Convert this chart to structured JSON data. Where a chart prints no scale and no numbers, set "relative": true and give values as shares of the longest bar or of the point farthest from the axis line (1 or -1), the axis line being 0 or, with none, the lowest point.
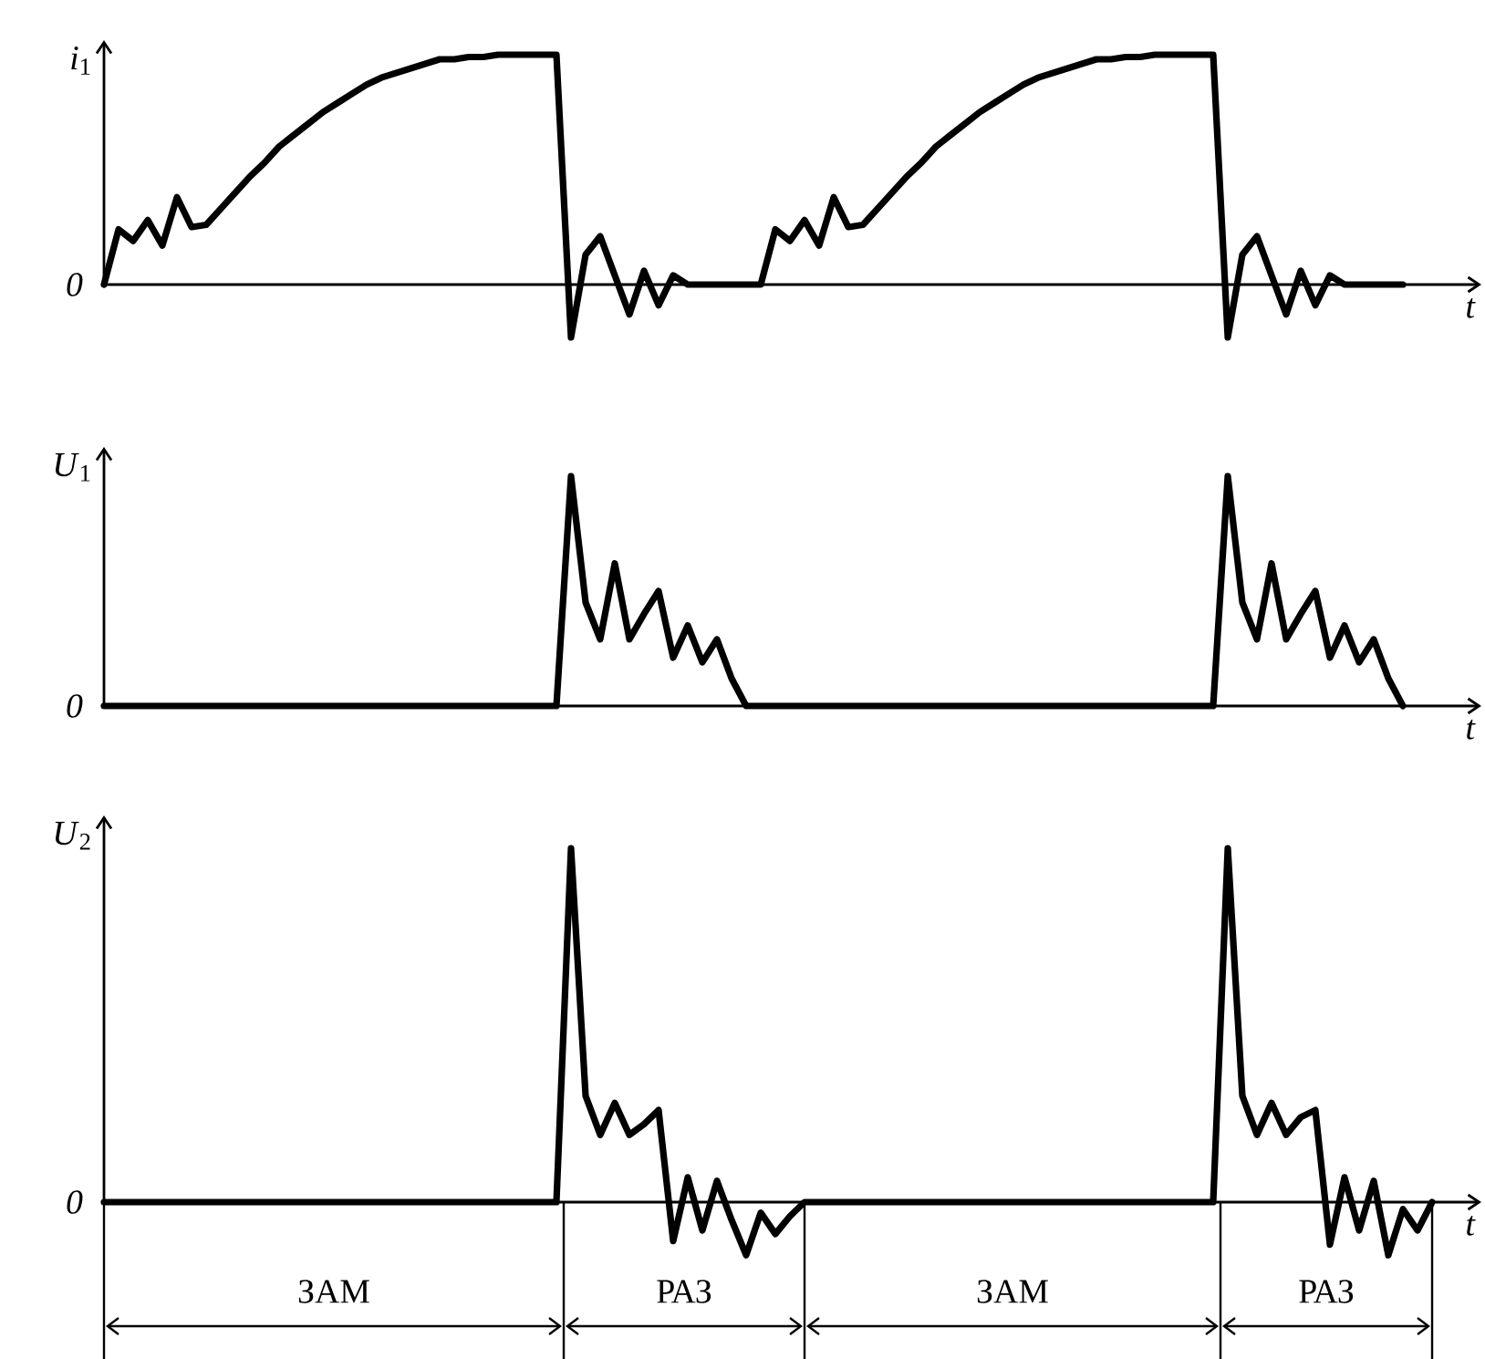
{
  "chart_data": [
    {
      "type": "line",
      "relative": true,
      "xlabel": "t",
      "ylabel": "*i*$_{1}$",
      "annotations": [
        "0"
      ],
      "categories": [
        null,
        null,
        null,
        null,
        null,
        null,
        null,
        null,
        null,
        null,
        null,
        null,
        null,
        null,
        null,
        null,
        null,
        null,
        null,
        null,
        null,
        null,
        null,
        null,
        null,
        null,
        null,
        null,
        null,
        null,
        null,
        null,
        null,
        null,
        null,
        null,
        null,
        null,
        null,
        null,
        null,
        null,
        null,
        null,
        null,
        null,
        null,
        null,
        null,
        null,
        null,
        null,
        null,
        null,
        null,
        null,
        null,
        null,
        null,
        null,
        null,
        null,
        null,
        null,
        null,
        null,
        null,
        null,
        null,
        null,
        null,
        null,
        null,
        null,
        null,
        null,
        null,
        null,
        null,
        null,
        null,
        null,
        null,
        null,
        null,
        null,
        null,
        null,
        null,
        null,
        null,
        null,
        null,
        null
      ],
      "series": [
        {
          "color": "#000000",
          "values": [
            0,
            0.24,
            0.19,
            0.28,
            0.17,
            0.38,
            0.25,
            0.26,
            0.33,
            0.4,
            0.47,
            0.53,
            0.6,
            0.65,
            0.7,
            0.75,
            0.79,
            0.83,
            0.87,
            0.9,
            0.92,
            0.94,
            0.96,
            0.98,
            0.98,
            0.99,
            0.99,
            1,
            1,
            1,
            1,
            1,
            -0.23,
            0.13,
            0.21,
            0.04,
            -0.13,
            0.06,
            -0.09,
            0.04,
            0,
            0,
            0,
            0,
            0,
            0,
            0.24,
            0.19,
            0.28,
            0.17,
            0.38,
            0.25,
            0.26,
            0.33,
            0.4,
            0.47,
            0.53,
            0.6,
            0.65,
            0.7,
            0.75,
            0.79,
            0.83,
            0.87,
            0.9,
            0.92,
            0.94,
            0.96,
            0.98,
            0.98,
            0.99,
            0.99,
            1,
            1,
            1,
            1,
            1,
            -0.23,
            0.13,
            0.21,
            0.04,
            -0.13,
            0.06,
            -0.09,
            0.04,
            0,
            0,
            0,
            0,
            0,
            null,
            null,
            null,
            null
          ]
        }
      ]
    },
    {
      "type": "line",
      "relative": true,
      "xlabel": "t",
      "ylabel": "*U*$_{1}$",
      "annotations": [
        "0"
      ],
      "categories": [
        null,
        null,
        null,
        null,
        null,
        null,
        null,
        null,
        null,
        null,
        null,
        null,
        null,
        null,
        null,
        null,
        null,
        null,
        null,
        null,
        null,
        null,
        null,
        null,
        null,
        null,
        null,
        null,
        null,
        null,
        null,
        null,
        null,
        null,
        null,
        null,
        null,
        null,
        null,
        null,
        null,
        null,
        null,
        null,
        null,
        null,
        null,
        null,
        null,
        null,
        null,
        null,
        null,
        null,
        null,
        null,
        null,
        null,
        null,
        null,
        null,
        null,
        null,
        null,
        null,
        null,
        null,
        null,
        null,
        null,
        null,
        null,
        null,
        null,
        null,
        null,
        null,
        null,
        null,
        null,
        null,
        null,
        null,
        null,
        null,
        null,
        null,
        null,
        null,
        null,
        null,
        null,
        null,
        null
      ],
      "series": [
        {
          "color": "#000000",
          "values": [
            0,
            0,
            0,
            0,
            0,
            0,
            0,
            0,
            0,
            0,
            0,
            0,
            0,
            0,
            0,
            0,
            0,
            0,
            0,
            0,
            0,
            0,
            0,
            0,
            0,
            0,
            0,
            0,
            0,
            0,
            0,
            0,
            1,
            0.45,
            0.29,
            0.62,
            0.29,
            0.4,
            0.5,
            0.21,
            0.35,
            0.19,
            0.29,
            0.12,
            0,
            0,
            0,
            0,
            0,
            0,
            0,
            0,
            0,
            0,
            0,
            0,
            0,
            0,
            0,
            0,
            0,
            0,
            0,
            0,
            0,
            0,
            0,
            0,
            0,
            0,
            0,
            0,
            0,
            0,
            0,
            0,
            0,
            1,
            0.45,
            0.29,
            0.62,
            0.29,
            0.4,
            0.5,
            0.21,
            0.35,
            0.19,
            0.29,
            0.12,
            0,
            null,
            null,
            null,
            null
          ]
        }
      ]
    },
    {
      "type": "line",
      "relative": true,
      "xlabel": "t",
      "ylabel": "*U*$_{2}$",
      "annotations": [
        "0",
        "ЗАМ",
        "РАЗ",
        "ЗАМ",
        "РАЗ"
      ],
      "categories": [
        null,
        null,
        null,
        null,
        null,
        null,
        null,
        null,
        null,
        null,
        null,
        null,
        null,
        null,
        null,
        null,
        null,
        null,
        null,
        null,
        null,
        null,
        null,
        null,
        null,
        null,
        null,
        null,
        null,
        null,
        null,
        null,
        null,
        null,
        null,
        null,
        null,
        null,
        null,
        null,
        null,
        null,
        null,
        null,
        null,
        null,
        null,
        null,
        null,
        null,
        null,
        null,
        null,
        null,
        null,
        null,
        null,
        null,
        null,
        null,
        null,
        null,
        null,
        null,
        null,
        null,
        null,
        null,
        null,
        null,
        null,
        null,
        null,
        null,
        null,
        null,
        null,
        null,
        null,
        null,
        null,
        null,
        null,
        null,
        null,
        null,
        null,
        null,
        null,
        null,
        null,
        null,
        null,
        null
      ],
      "series": [
        {
          "color": "#000000",
          "values": [
            0,
            0,
            0,
            0,
            0,
            0,
            0,
            0,
            0,
            0,
            0,
            0,
            0,
            0,
            0,
            0,
            0,
            0,
            0,
            0,
            0,
            0,
            0,
            0,
            0,
            0,
            0,
            0,
            0,
            0,
            0,
            0,
            1,
            0.3,
            0.19,
            0.28,
            0.19,
            0.22,
            0.26,
            -0.11,
            0.07,
            -0.08,
            0.06,
            -0.05,
            -0.15,
            -0.03,
            -0.09,
            -0.04,
            0,
            0,
            0,
            0,
            0,
            0,
            0,
            0,
            0,
            0,
            0,
            0,
            0,
            0,
            0,
            0,
            0,
            0,
            0,
            0,
            0,
            0,
            0,
            0,
            0,
            0,
            0,
            0,
            0,
            1,
            0.3,
            0.19,
            0.28,
            0.19,
            0.24,
            0.26,
            -0.12,
            0.07,
            -0.08,
            0.06,
            -0.15,
            -0.02,
            -0.08,
            0,
            null,
            null
          ]
        }
      ]
    }
  ]
}
